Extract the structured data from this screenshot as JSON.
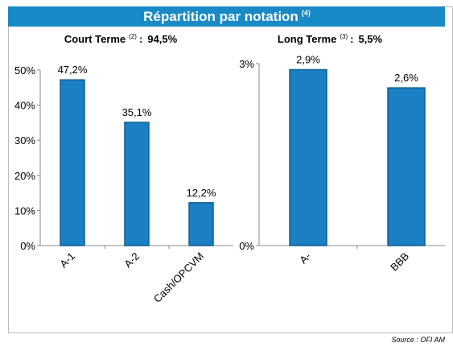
{
  "title": "Répartition par notation",
  "title_note": "(4)",
  "separator": ":",
  "source": "Source : OFI AM",
  "chart_data": [
    {
      "type": "bar",
      "title": "Court Terme",
      "title_note": "(2)",
      "title_value": "94,5%",
      "categories": [
        "A-1",
        "A-2",
        "Cash/OPCVM"
      ],
      "values": [
        47.2,
        35.1,
        12.2
      ],
      "value_labels": [
        "47,2%",
        "35,1%",
        "12,2%"
      ],
      "color": "#1b7fc3",
      "ylim": [
        0,
        50
      ],
      "yticks": [
        {
          "value": 0,
          "label": "0%"
        },
        {
          "value": 10,
          "label": "10%"
        },
        {
          "value": 20,
          "label": "20%"
        },
        {
          "value": 30,
          "label": "30%"
        },
        {
          "value": 40,
          "label": "40%"
        },
        {
          "value": 50,
          "label": "50%"
        }
      ]
    },
    {
      "type": "bar",
      "title": "Long Terme",
      "title_note": "(3)",
      "title_value": "5,5%",
      "categories": [
        "A-",
        "BBB"
      ],
      "values": [
        2.9,
        2.6
      ],
      "value_labels": [
        "2,9%",
        "2,6%"
      ],
      "color": "#1b7fc3",
      "ylim": [
        0,
        3
      ],
      "yticks": [
        {
          "value": 0,
          "label": "0%"
        },
        {
          "value": 3,
          "label": "3%"
        }
      ]
    }
  ]
}
